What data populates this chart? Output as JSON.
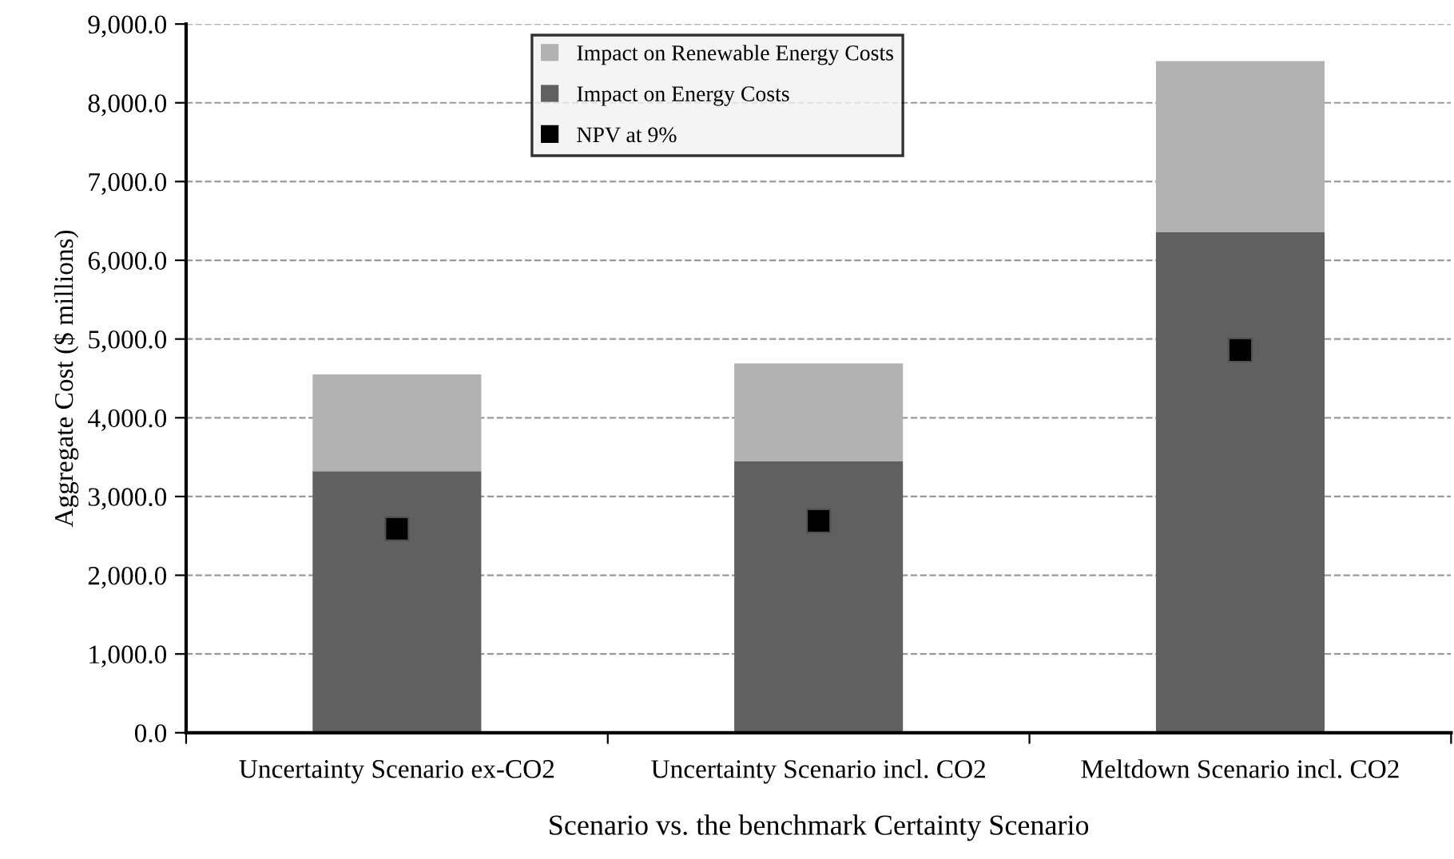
{
  "chart_data": {
    "type": "bar",
    "stacked": true,
    "xlabel": "Scenario vs. the benchmark Certainty Scenario",
    "ylabel": "Aggregate Cost ($ millions)",
    "categories": [
      "Uncertainty Scenario ex-CO2",
      "Uncertainty Scenario incl. CO2",
      "Meltdown Scenario incl. CO2"
    ],
    "series": [
      {
        "name": "Impact on Energy Costs",
        "color": "#606060",
        "values": [
          3320,
          3450,
          6360
        ]
      },
      {
        "name": "Impact on Renewable Energy Costs",
        "color": "#b2b2b2",
        "values": [
          1230,
          1240,
          2170
        ]
      },
      {
        "name": "NPV at 9%",
        "type": "scatter",
        "marker": "square",
        "color": "#000000",
        "x": [
          "Uncertainty Scenario ex-CO2",
          "Uncertainty Scenario incl. CO2",
          "Meltdown Scenario incl. CO2"
        ],
        "values": [
          2590,
          2690,
          4860
        ]
      }
    ],
    "ylim": [
      0,
      9000
    ],
    "yticks": [
      {
        "value": 0,
        "label": "0.0"
      },
      {
        "value": 1000,
        "label": "1,000.0"
      },
      {
        "value": 2000,
        "label": "2,000.0"
      },
      {
        "value": 3000,
        "label": "3,000.0"
      },
      {
        "value": 4000,
        "label": "4,000.0"
      },
      {
        "value": 5000,
        "label": "5,000.0"
      },
      {
        "value": 6000,
        "label": "6,000.0"
      },
      {
        "value": 7000,
        "label": "7,000.0"
      },
      {
        "value": 8000,
        "label": "8,000.0"
      },
      {
        "value": 9000,
        "label": "9,000.0"
      }
    ],
    "grid": "y",
    "legend": "top"
  }
}
